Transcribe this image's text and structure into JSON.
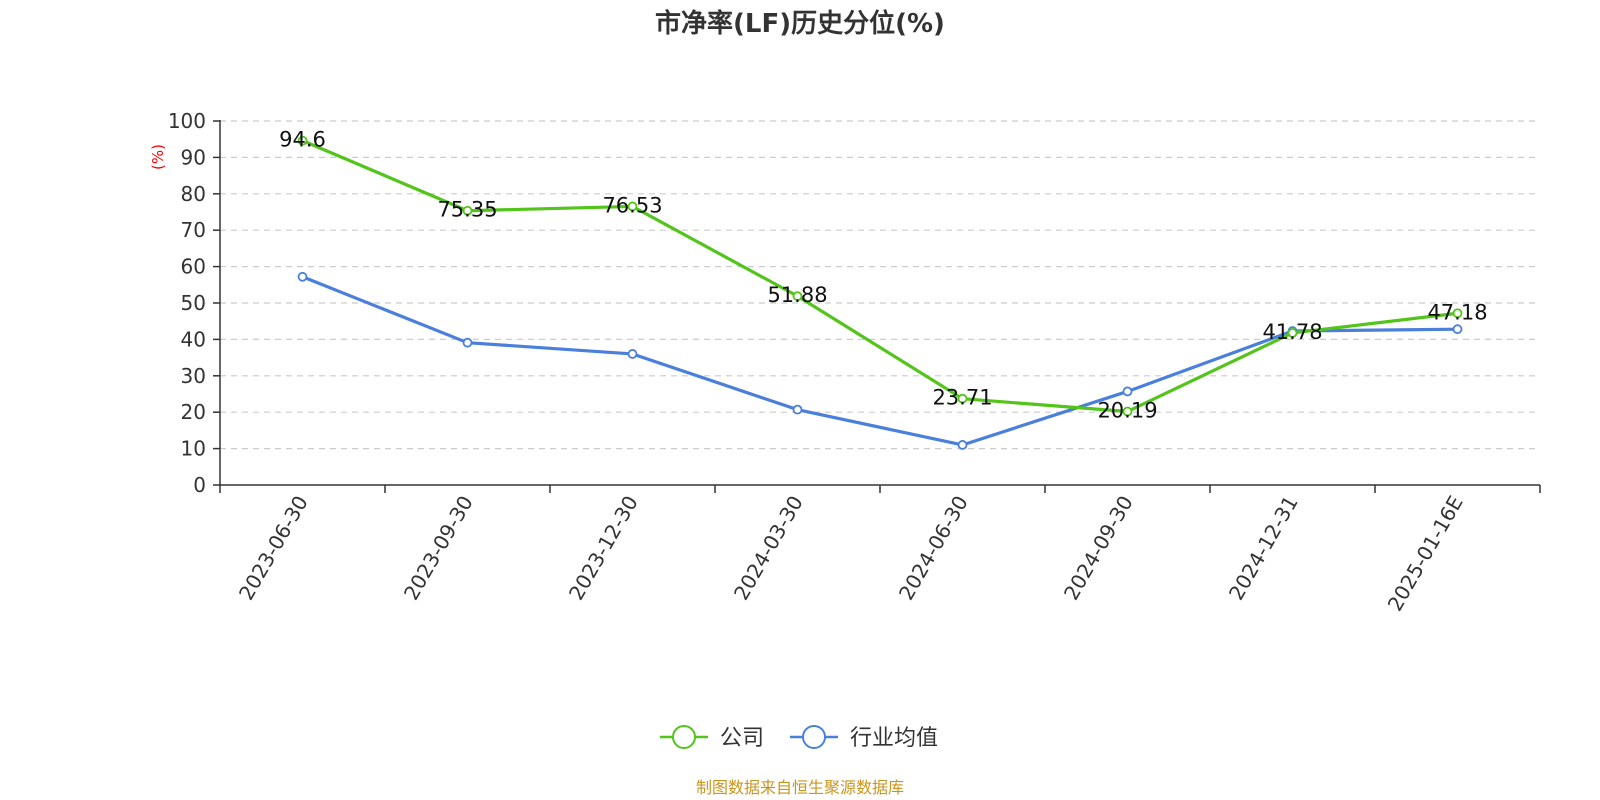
{
  "source_note": "制图数据来自恒生聚源数据库",
  "colors": {
    "company": "#52c41a",
    "industry": "#4a7fdc",
    "grid": "#cccccc",
    "axis": "#333333",
    "unit": "#ff0000",
    "source": "#c8961e"
  },
  "chart_data": {
    "type": "line",
    "title": "市净率(LF)历史分位(%)",
    "ylabel": "(%)",
    "ylim": [
      0,
      100
    ],
    "yticks": [
      0,
      10,
      20,
      30,
      40,
      50,
      60,
      70,
      80,
      90,
      100
    ],
    "grid": "dashed-horizontal",
    "legend_position": "bottom-center",
    "categories": [
      "2023-06-30",
      "2023-09-30",
      "2023-12-30",
      "2024-03-30",
      "2024-06-30",
      "2024-09-30",
      "2024-12-31",
      "2025-01-16E"
    ],
    "series": [
      {
        "name": "公司",
        "values": [
          94.6,
          75.35,
          76.53,
          51.88,
          23.71,
          20.19,
          41.78,
          47.18
        ],
        "data_labels": [
          "94.6",
          "75.35",
          "76.53",
          "51.88",
          "23.71",
          "20.19",
          "41.78",
          "47.18"
        ]
      },
      {
        "name": "行业均值",
        "values": [
          57.2,
          39.1,
          36.0,
          20.7,
          11.0,
          25.7,
          42.3,
          42.8
        ]
      }
    ]
  }
}
